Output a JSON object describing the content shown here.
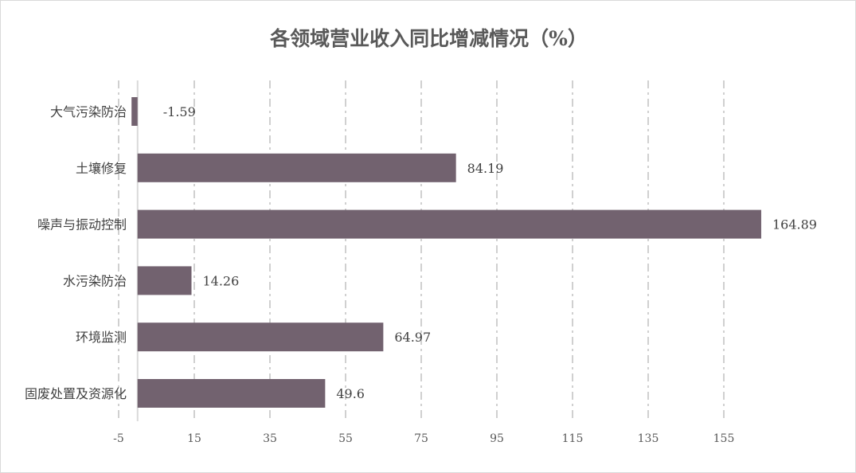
{
  "chart_data": {
    "type": "bar",
    "orientation": "horizontal",
    "title": "各领域营业收入同比增减情况（%）",
    "categories": [
      "大气污染防治",
      "土壤修复",
      "噪声与振动控制",
      "水污染防治",
      "环境监测",
      "固废处置及资源化"
    ],
    "values": [
      -1.59,
      84.19,
      164.89,
      14.26,
      64.97,
      49.6
    ],
    "data_labels": [
      "-1.59",
      "84.19",
      "164.89",
      "14.26",
      "64.97",
      "49.6"
    ],
    "x_ticks": [
      "-5",
      "15",
      "35",
      "55",
      "75",
      "95",
      "115",
      "135",
      "155"
    ],
    "xlim": [
      -5,
      175
    ],
    "grid": "vertical dash-dot",
    "legend": "none",
    "bar_color": "#72626f"
  }
}
